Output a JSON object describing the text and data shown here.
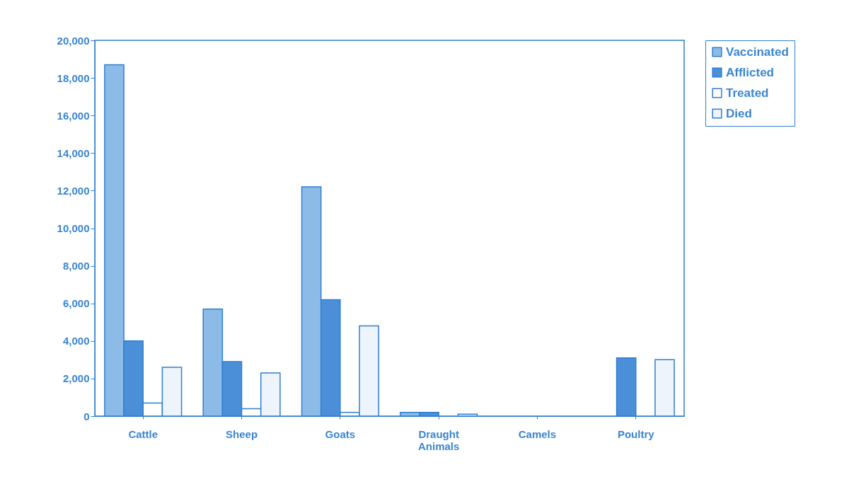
{
  "chart_data": {
    "type": "bar",
    "categories": [
      "Cattle",
      "Sheep",
      "Goats",
      "Draught Animals",
      "Camels",
      "Poultry"
    ],
    "series": [
      {
        "name": "Vaccinated",
        "color": "#8dbbe8",
        "values": [
          18700,
          5700,
          12200,
          200,
          0,
          0
        ]
      },
      {
        "name": "Afflicted",
        "color": "#4b8fd8",
        "values": [
          4000,
          2900,
          6200,
          200,
          0,
          3100
        ]
      },
      {
        "name": "Treated",
        "color": "#ffffff",
        "values": [
          700,
          400,
          200,
          0,
          0,
          0
        ]
      },
      {
        "name": "Died",
        "color": "#eef4fb",
        "values": [
          2600,
          2300,
          4800,
          100,
          0,
          3000
        ]
      }
    ],
    "ylim": [
      0,
      20000
    ],
    "yticks": [
      {
        "value": 0,
        "label": "0"
      },
      {
        "value": 2000,
        "label": "2,000"
      },
      {
        "value": 4000,
        "label": "4,000"
      },
      {
        "value": 6000,
        "label": "6,000"
      },
      {
        "value": 8000,
        "label": "8,000"
      },
      {
        "value": 10000,
        "label": "10,000"
      },
      {
        "value": 12000,
        "label": "12,000"
      },
      {
        "value": 14000,
        "label": "14,000"
      },
      {
        "value": 16000,
        "label": "16,000"
      },
      {
        "value": 18000,
        "label": "18,000"
      },
      {
        "value": 20000,
        "label": "20,000"
      }
    ],
    "grid": false,
    "legend": "right"
  }
}
